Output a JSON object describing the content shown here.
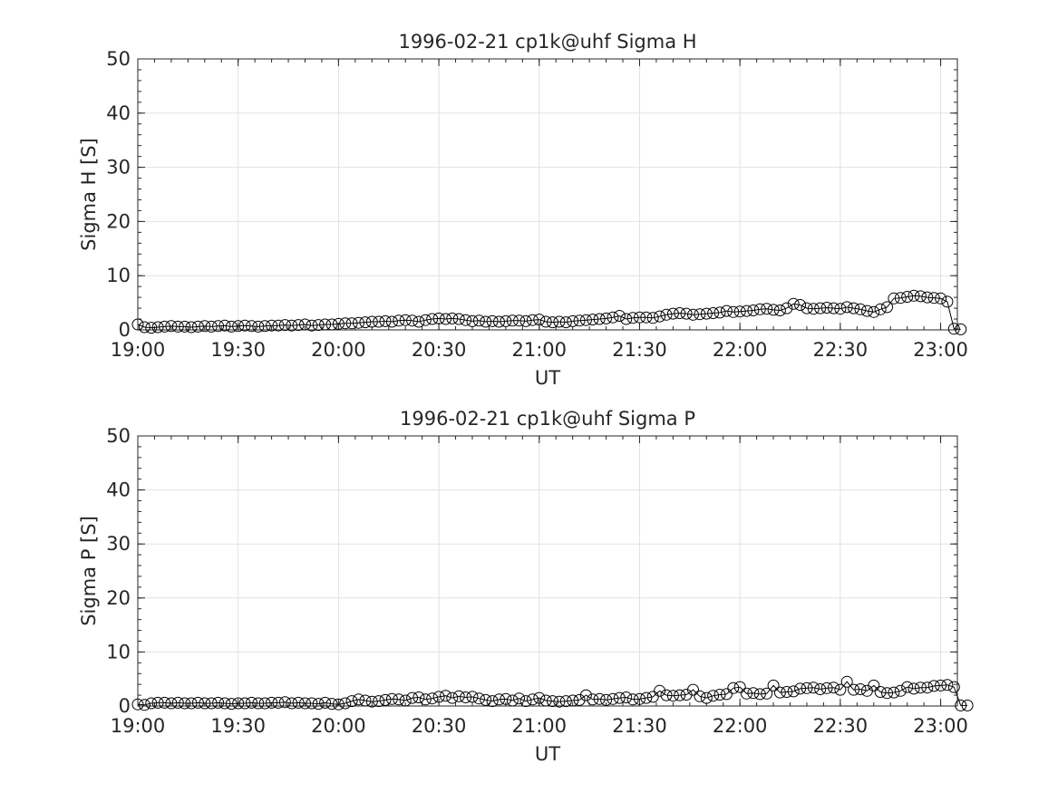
{
  "chart_data": [
    {
      "type": "line",
      "title": "1996-02-21  cp1k@uhf Sigma H",
      "xlabel": "UT",
      "ylabel": "Sigma H [S]",
      "ylim": [
        0,
        50
      ],
      "yticks": [
        "0",
        "10",
        "20",
        "30",
        "40",
        "50"
      ],
      "xlim": [
        "19:00",
        "23:05"
      ],
      "xticks": [
        "19:00",
        "19:30",
        "20:00",
        "20:30",
        "21:00",
        "21:30",
        "22:00",
        "22:30",
        "23:00"
      ],
      "grid": true,
      "marker": "open-circle",
      "line_color": "#000000",
      "series": [
        {
          "x_start": "19:00",
          "x_step_minutes": 2,
          "values": [
            1.0,
            0.5,
            0.4,
            0.5,
            0.6,
            0.7,
            0.6,
            0.6,
            0.5,
            0.6,
            0.7,
            0.6,
            0.7,
            0.8,
            0.6,
            0.7,
            0.8,
            0.7,
            0.6,
            0.7,
            0.8,
            0.8,
            0.9,
            0.8,
            0.9,
            1.0,
            0.8,
            0.9,
            1.0,
            1.0,
            1.1,
            1.2,
            1.2,
            1.3,
            1.4,
            1.5,
            1.5,
            1.6,
            1.5,
            1.7,
            1.8,
            1.7,
            1.5,
            1.8,
            2.0,
            2.1,
            2.0,
            2.1,
            2.0,
            1.8,
            1.6,
            1.7,
            1.5,
            1.6,
            1.5,
            1.6,
            1.7,
            1.7,
            1.6,
            1.8,
            1.9,
            1.5,
            1.4,
            1.5,
            1.4,
            1.6,
            1.7,
            1.8,
            1.9,
            2.0,
            2.1,
            2.3,
            2.6,
            2.0,
            2.2,
            2.3,
            2.3,
            2.2,
            2.5,
            2.8,
            3.0,
            3.1,
            3.0,
            2.8,
            2.9,
            3.0,
            3.1,
            3.2,
            3.5,
            3.3,
            3.4,
            3.5,
            3.6,
            3.8,
            3.9,
            3.7,
            3.6,
            4.0,
            4.8,
            4.6,
            4.0,
            3.9,
            4.0,
            4.1,
            4.0,
            3.9,
            4.2,
            4.0,
            3.8,
            3.5,
            3.3,
            3.8,
            4.2,
            5.8,
            5.9,
            6.1,
            6.3,
            6.2,
            6.0,
            5.9,
            5.8,
            5.2,
            0.2,
            0.1
          ]
        }
      ]
    },
    {
      "type": "line",
      "title": "1996-02-21  cp1k@uhf Sigma P",
      "xlabel": "UT",
      "ylabel": "Sigma P [S]",
      "ylim": [
        0,
        50
      ],
      "yticks": [
        "0",
        "10",
        "20",
        "30",
        "40",
        "50"
      ],
      "xlim": [
        "19:00",
        "23:05"
      ],
      "xticks": [
        "19:00",
        "19:30",
        "20:00",
        "20:30",
        "21:00",
        "21:30",
        "22:00",
        "22:30",
        "23:00"
      ],
      "grid": true,
      "marker": "open-circle",
      "line_color": "#000000",
      "series": [
        {
          "x_start": "19:00",
          "x_step_minutes": 2,
          "values": [
            0.3,
            0.2,
            0.5,
            0.6,
            0.6,
            0.5,
            0.6,
            0.5,
            0.5,
            0.6,
            0.5,
            0.5,
            0.6,
            0.5,
            0.4,
            0.5,
            0.5,
            0.6,
            0.5,
            0.5,
            0.6,
            0.6,
            0.7,
            0.5,
            0.6,
            0.5,
            0.5,
            0.4,
            0.6,
            0.4,
            0.3,
            0.5,
            0.9,
            1.2,
            1.0,
            0.8,
            0.9,
            1.1,
            1.3,
            1.2,
            1.0,
            1.5,
            1.6,
            1.2,
            1.4,
            1.7,
            1.9,
            1.5,
            1.8,
            1.6,
            1.7,
            1.4,
            1.1,
            0.9,
            1.2,
            1.3,
            1.0,
            1.4,
            0.9,
            1.2,
            1.5,
            1.0,
            0.9,
            0.8,
            0.9,
            1.0,
            1.1,
            2.0,
            1.2,
            1.3,
            1.1,
            1.3,
            1.5,
            1.6,
            1.2,
            1.3,
            1.5,
            1.7,
            2.8,
            2.0,
            1.9,
            2.0,
            2.1,
            3.0,
            1.8,
            1.5,
            1.9,
            2.1,
            2.2,
            3.3,
            3.5,
            2.3,
            2.4,
            2.2,
            2.3,
            3.8,
            2.5,
            2.6,
            2.7,
            3.2,
            3.3,
            3.4,
            3.1,
            3.3,
            3.4,
            3.0,
            4.5,
            3.0,
            3.1,
            2.8,
            3.8,
            2.6,
            2.4,
            2.5,
            2.8,
            3.5,
            3.2,
            3.4,
            3.4,
            3.7,
            3.8,
            3.9,
            3.5,
            0.1,
            0.1
          ]
        }
      ]
    }
  ]
}
